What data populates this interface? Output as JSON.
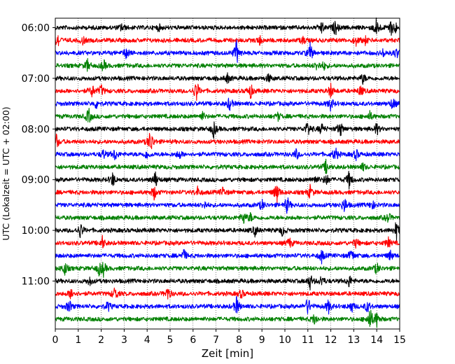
{
  "chart_data": {
    "type": "line",
    "title": "",
    "xlabel": "Zeit  [min]",
    "ylabel": "UTC (Lokalzeit = UTC + 02:00)",
    "xlim": [
      0,
      15
    ],
    "x_ticks": [
      "0",
      "1",
      "2",
      "3",
      "4",
      "5",
      "6",
      "7",
      "8",
      "9",
      "10",
      "11",
      "12",
      "13",
      "14",
      "15"
    ],
    "y_ticks": [
      "06:00",
      "07:00",
      "08:00",
      "09:00",
      "10:00",
      "11:00"
    ],
    "minutes_per_line": 15,
    "grid": "vertical dotted",
    "colors_cycle": [
      "#000000",
      "#ff0000",
      "#0000ff",
      "#008000"
    ],
    "series": [
      {
        "start": "06:00",
        "color": "#000000",
        "events": [
          [
            2.9,
            0.8
          ],
          [
            4.5,
            0.6
          ],
          [
            11.6,
            1.1
          ],
          [
            12.2,
            1.5
          ],
          [
            14.0,
            2.3
          ],
          [
            14.6,
            1.5
          ],
          [
            14.8,
            1.1
          ]
        ]
      },
      {
        "start": "06:15",
        "color": "#ff0000",
        "events": [
          [
            0.1,
            1.6
          ],
          [
            1.2,
            0.7
          ],
          [
            8.9,
            0.8
          ],
          [
            10.8,
            0.7
          ],
          [
            13.1,
            0.9
          ],
          [
            13.5,
            0.7
          ]
        ]
      },
      {
        "start": "06:30",
        "color": "#0000ff",
        "events": [
          [
            3.1,
            1.2
          ],
          [
            7.9,
            2.4
          ],
          [
            11.1,
            1.9
          ],
          [
            14.3,
            0.8
          ],
          [
            14.85,
            1.0
          ]
        ]
      },
      {
        "start": "06:45",
        "color": "#008000",
        "events": [
          [
            1.4,
            1.2
          ],
          [
            2.1,
            1.1
          ],
          [
            11.4,
            0.9
          ],
          [
            11.7,
            0.7
          ]
        ]
      },
      {
        "start": "07:00",
        "color": "#000000",
        "events": [
          [
            7.5,
            0.9
          ],
          [
            9.3,
            0.8
          ],
          [
            13.4,
            1.0
          ]
        ]
      },
      {
        "start": "07:15",
        "color": "#ff0000",
        "events": [
          [
            1.6,
            1.2
          ],
          [
            2.0,
            1.1
          ],
          [
            6.15,
            2.2
          ],
          [
            8.5,
            1.5
          ],
          [
            12.0,
            1.3
          ],
          [
            13.3,
            1.0
          ]
        ]
      },
      {
        "start": "07:30",
        "color": "#0000ff",
        "events": [
          [
            1.8,
            0.9
          ],
          [
            7.6,
            1.4
          ],
          [
            12.0,
            1.3
          ],
          [
            14.7,
            1.2
          ]
        ]
      },
      {
        "start": "07:45",
        "color": "#008000",
        "events": [
          [
            1.45,
            1.6
          ],
          [
            6.4,
            0.8
          ],
          [
            9.7,
            0.7
          ],
          [
            13.7,
            0.8
          ]
        ]
      },
      {
        "start": "08:00",
        "color": "#000000",
        "events": [
          [
            6.9,
            1.6
          ],
          [
            11.0,
            1.6
          ],
          [
            11.6,
            1.1
          ],
          [
            12.4,
            1.6
          ],
          [
            14.0,
            1.1
          ]
        ]
      },
      {
        "start": "08:15",
        "color": "#ff0000",
        "events": [
          [
            0.05,
            1.4
          ],
          [
            4.15,
            2.6
          ]
        ]
      },
      {
        "start": "08:30",
        "color": "#0000ff",
        "events": [
          [
            2.1,
            0.9
          ],
          [
            2.6,
            1.2
          ],
          [
            4.0,
            0.9
          ],
          [
            5.4,
            0.9
          ],
          [
            10.5,
            1.0
          ],
          [
            12.2,
            1.5
          ],
          [
            13.1,
            1.0
          ]
        ]
      },
      {
        "start": "08:45",
        "color": "#008000",
        "events": [
          [
            11.8,
            1.4
          ],
          [
            13.4,
            0.7
          ]
        ]
      },
      {
        "start": "09:00",
        "color": "#000000",
        "events": [
          [
            2.5,
            1.4
          ],
          [
            4.35,
            1.7
          ],
          [
            11.3,
            0.9
          ],
          [
            11.8,
            1.2
          ],
          [
            12.8,
            1.7
          ]
        ]
      },
      {
        "start": "09:15",
        "color": "#ff0000",
        "events": [
          [
            4.3,
            1.4
          ],
          [
            6.2,
            0.9
          ],
          [
            7.3,
            0.9
          ],
          [
            9.65,
            2.2
          ],
          [
            11.1,
            1.3
          ]
        ]
      },
      {
        "start": "09:30",
        "color": "#0000ff",
        "events": [
          [
            6.5,
            0.7
          ],
          [
            9.0,
            1.0
          ],
          [
            10.1,
            1.6
          ],
          [
            12.6,
            1.6
          ],
          [
            13.8,
            0.9
          ]
        ]
      },
      {
        "start": "09:45",
        "color": "#008000",
        "events": [
          [
            8.2,
            1.2
          ],
          [
            8.5,
            0.8
          ],
          [
            14.5,
            1.0
          ]
        ]
      },
      {
        "start": "10:00",
        "color": "#000000",
        "events": [
          [
            1.1,
            1.6
          ],
          [
            8.7,
            1.0
          ],
          [
            9.9,
            1.0
          ],
          [
            14.85,
            1.8
          ]
        ]
      },
      {
        "start": "10:15",
        "color": "#ff0000",
        "events": [
          [
            2.05,
            1.2
          ],
          [
            10.2,
            1.0
          ],
          [
            13.1,
            0.9
          ],
          [
            14.5,
            1.0
          ]
        ]
      },
      {
        "start": "10:30",
        "color": "#0000ff",
        "events": [
          [
            5.6,
            1.2
          ],
          [
            11.6,
            1.3
          ],
          [
            12.9,
            1.2
          ],
          [
            14.6,
            0.9
          ]
        ]
      },
      {
        "start": "10:45",
        "color": "#008000",
        "events": [
          [
            0.4,
            1.4
          ],
          [
            1.9,
            1.1
          ],
          [
            2.1,
            1.3
          ],
          [
            14.0,
            1.1
          ]
        ]
      },
      {
        "start": "11:00",
        "color": "#000000",
        "events": [
          [
            1.5,
            0.8
          ],
          [
            11.1,
            1.5
          ],
          [
            11.6,
            1.1
          ],
          [
            12.8,
            1.2
          ]
        ]
      },
      {
        "start": "11:15",
        "color": "#ff0000",
        "events": [
          [
            0.7,
            1.2
          ],
          [
            2.6,
            1.4
          ],
          [
            4.9,
            1.3
          ],
          [
            8.1,
            0.8
          ]
        ]
      },
      {
        "start": "11:30",
        "color": "#0000ff",
        "events": [
          [
            0.6,
            1.3
          ],
          [
            2.3,
            1.0
          ],
          [
            7.9,
            1.8
          ],
          [
            11.0,
            1.8
          ],
          [
            11.9,
            1.3
          ],
          [
            12.9,
            1.2
          ],
          [
            13.6,
            1.2
          ]
        ]
      },
      {
        "start": "11:45",
        "color": "#008000",
        "events": [
          [
            11.3,
            1.2
          ],
          [
            13.7,
            2.4
          ],
          [
            14.0,
            1.4
          ]
        ]
      }
    ]
  }
}
